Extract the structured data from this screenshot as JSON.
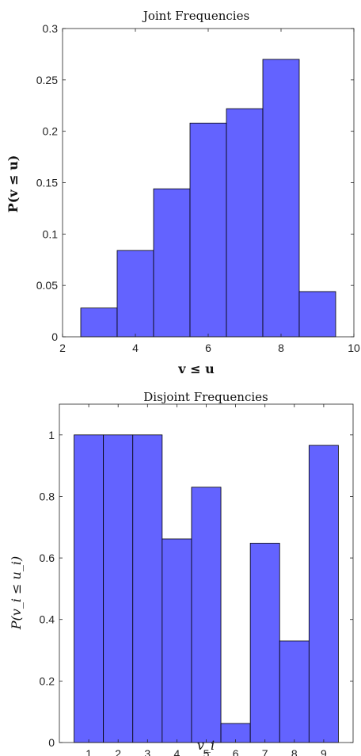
{
  "chart_data": [
    {
      "type": "bar",
      "title": "Joint Frequencies",
      "xlabel": "v ≤ u",
      "ylabel": "P(v ≤ u)",
      "x": [
        3,
        4,
        5,
        6,
        7,
        8,
        9
      ],
      "values": [
        0.028,
        0.084,
        0.144,
        0.208,
        0.222,
        0.27,
        0.044
      ],
      "bar_width": 1,
      "xlim": [
        2,
        10
      ],
      "ylim": [
        0,
        0.3
      ],
      "xticks": [
        2,
        4,
        6,
        8,
        10
      ],
      "yticks": [
        0,
        0.05,
        0.1,
        0.15,
        0.2,
        0.25,
        0.3
      ],
      "xtick_labels": [
        "2",
        "4",
        "6",
        "8",
        "10"
      ],
      "ytick_labels": [
        "0",
        "0.05",
        "0.1",
        "0.15",
        "0.2",
        "0.25",
        "0.3"
      ],
      "grid": false,
      "bar_color": "#6363ff"
    },
    {
      "type": "bar",
      "title": "Disjoint Frequencies",
      "xlabel": "v_i",
      "ylabel": "P(v_i ≤ u_i)",
      "x": [
        1,
        2,
        3,
        4,
        5,
        6,
        7,
        8,
        9
      ],
      "values": [
        1.0,
        1.0,
        1.0,
        0.662,
        0.83,
        0.062,
        0.648,
        0.33,
        0.966
      ],
      "bar_width": 1,
      "xlim": [
        0,
        10
      ],
      "ylim": [
        0,
        1.1
      ],
      "xticks": [
        1,
        2,
        3,
        4,
        5,
        6,
        7,
        8,
        9
      ],
      "yticks": [
        0,
        0.2,
        0.4,
        0.6,
        0.8,
        1
      ],
      "xtick_labels": [
        "1",
        "2",
        "3",
        "4",
        "5",
        "6",
        "7",
        "8",
        "9"
      ],
      "ytick_labels": [
        "0",
        "0.2",
        "0.4",
        "0.6",
        "0.8",
        "1"
      ],
      "grid": false,
      "bar_color": "#6363ff"
    }
  ]
}
